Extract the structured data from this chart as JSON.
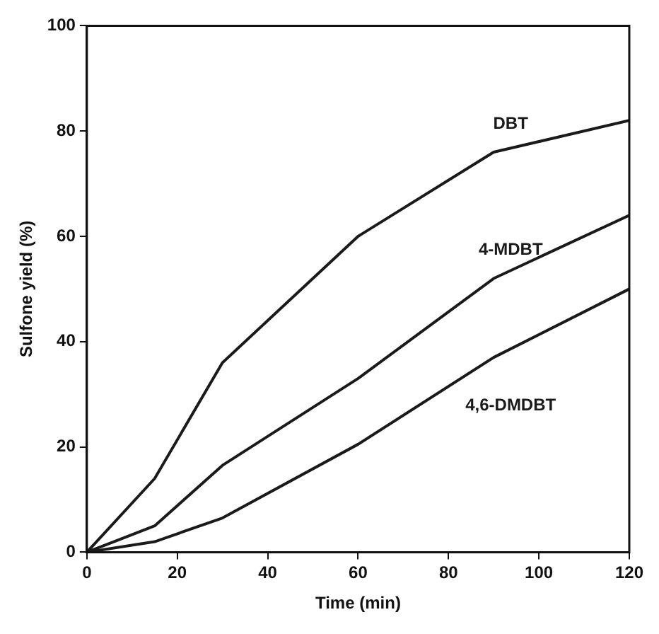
{
  "chart_data": {
    "type": "line",
    "xlabel": "Time (min)",
    "ylabel": "Sulfone yield (%)",
    "x": [
      0,
      15,
      30,
      60,
      90,
      120
    ],
    "series": [
      {
        "name": "DBT",
        "color": "#1a1a1a",
        "values": [
          0,
          14,
          36,
          60,
          76,
          82
        ]
      },
      {
        "name": "4-MDBT",
        "color": "#1a1a1a",
        "values": [
          0,
          5,
          16.5,
          33,
          52,
          64
        ]
      },
      {
        "name": "4,6-DMDBT",
        "color": "#1a1a1a",
        "values": [
          0,
          2,
          6.5,
          20.5,
          37,
          50
        ]
      }
    ],
    "xlim": [
      0,
      120
    ],
    "xticks": [
      0,
      20,
      40,
      60,
      80,
      100,
      120
    ],
    "ylim": [
      0,
      100
    ],
    "yticks": [
      0,
      20,
      40,
      60,
      80,
      100
    ],
    "grid": false,
    "legend": false,
    "marker": "none",
    "line_style": "solid"
  }
}
